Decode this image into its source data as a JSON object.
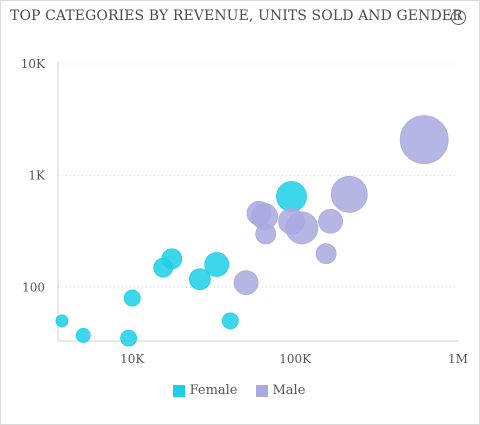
{
  "header": {
    "title": "TOP CATEGORIES BY REVENUE, UNITS SOLD AND GENDER",
    "info_icon": "info-icon",
    "info_glyph": "i"
  },
  "chart_data": {
    "type": "scatter",
    "title": "TOP CATEGORIES BY REVENUE, UNITS SOLD AND GENDER",
    "x_scale": "log",
    "y_scale": "log",
    "xlim": [
      3500,
      1000000
    ],
    "ylim": [
      33,
      10000
    ],
    "x_ticks": [
      {
        "value": 10000,
        "label": "10K"
      },
      {
        "value": 100000,
        "label": "100K"
      },
      {
        "value": 1000000,
        "label": "1M"
      }
    ],
    "y_ticks": [
      {
        "value": 100,
        "label": "100"
      },
      {
        "value": 1000,
        "label": "1K"
      },
      {
        "value": 10000,
        "label": "10K"
      }
    ],
    "grid": true,
    "legend_position": "bottom",
    "series": [
      {
        "name": "Female",
        "color": "#1ccfe6",
        "points": [
          {
            "x": 3700,
            "y": 50,
            "size": 6
          },
          {
            "x": 5000,
            "y": 37,
            "size": 7
          },
          {
            "x": 9500,
            "y": 35,
            "size": 8
          },
          {
            "x": 10000,
            "y": 80,
            "size": 8
          },
          {
            "x": 15500,
            "y": 150,
            "size": 9.5
          },
          {
            "x": 17500,
            "y": 180,
            "size": 10
          },
          {
            "x": 26000,
            "y": 118,
            "size": 10.5
          },
          {
            "x": 33000,
            "y": 160,
            "size": 12
          },
          {
            "x": 40000,
            "y": 50,
            "size": 8
          },
          {
            "x": 95000,
            "y": 650,
            "size": 15
          }
        ]
      },
      {
        "name": "Male",
        "color": "#a9a9e0",
        "points": [
          {
            "x": 50000,
            "y": 110,
            "size": 12
          },
          {
            "x": 60000,
            "y": 460,
            "size": 12
          },
          {
            "x": 65000,
            "y": 430,
            "size": 13
          },
          {
            "x": 66000,
            "y": 300,
            "size": 10
          },
          {
            "x": 95000,
            "y": 390,
            "size": 13
          },
          {
            "x": 110000,
            "y": 340,
            "size": 16
          },
          {
            "x": 155000,
            "y": 200,
            "size": 10
          },
          {
            "x": 165000,
            "y": 390,
            "size": 12
          },
          {
            "x": 215000,
            "y": 680,
            "size": 18
          },
          {
            "x": 620000,
            "y": 2100,
            "size": 24
          }
        ]
      }
    ]
  }
}
